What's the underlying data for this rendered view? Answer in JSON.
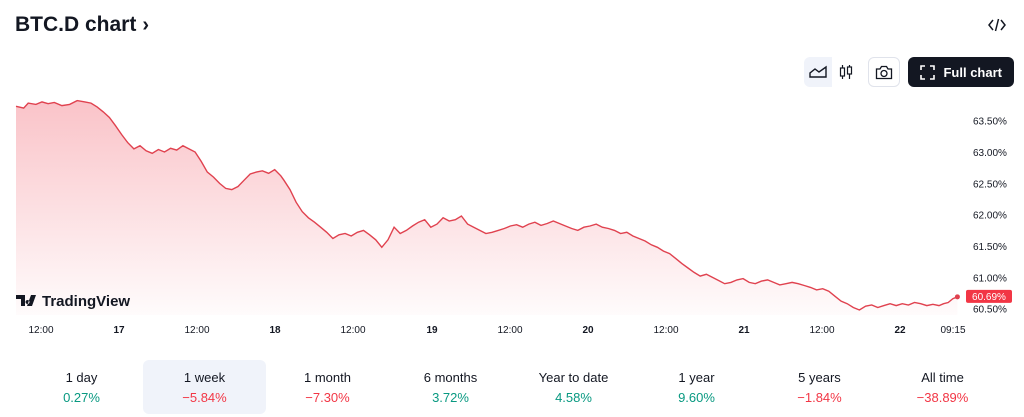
{
  "header": {
    "title": "BTC.D chart",
    "chevron": "›",
    "embed_icon": "</>"
  },
  "toolbar": {
    "area_icon": "area-chart-icon",
    "candle_icon": "candles-icon",
    "camera_icon": "camera-icon",
    "full_chart_label": "Full chart"
  },
  "watermark": {
    "text": "TradingView"
  },
  "chart_data": {
    "type": "area",
    "x_ticks": [
      "12:00",
      "17",
      "12:00",
      "18",
      "12:00",
      "19",
      "12:00",
      "20",
      "12:00",
      "21",
      "12:00",
      "22",
      "09:15"
    ],
    "y_ticks": [
      "63.50%",
      "63.00%",
      "62.50%",
      "62.00%",
      "61.50%",
      "61.00%",
      "60.50%"
    ],
    "y_tick_values": [
      63.5,
      63.0,
      62.5,
      62.0,
      61.5,
      61.0,
      60.5
    ],
    "ylim": [
      60.4,
      63.75
    ],
    "x_domain_days": [
      16.25,
      22.43
    ],
    "current_value_label": "60.69%",
    "current_value": 60.69,
    "line_color": "#e0424f",
    "fill_color": "#f7a3ab",
    "label_color": "#f23645",
    "points": [
      [
        16.25,
        63.73
      ],
      [
        16.3,
        63.7
      ],
      [
        16.33,
        63.78
      ],
      [
        16.38,
        63.76
      ],
      [
        16.42,
        63.8
      ],
      [
        16.46,
        63.77
      ],
      [
        16.5,
        63.79
      ],
      [
        16.55,
        63.74
      ],
      [
        16.6,
        63.76
      ],
      [
        16.65,
        63.82
      ],
      [
        16.7,
        63.8
      ],
      [
        16.74,
        63.78
      ],
      [
        16.78,
        63.72
      ],
      [
        16.82,
        63.64
      ],
      [
        16.86,
        63.55
      ],
      [
        16.9,
        63.42
      ],
      [
        16.94,
        63.28
      ],
      [
        16.98,
        63.15
      ],
      [
        17.02,
        63.05
      ],
      [
        17.06,
        63.1
      ],
      [
        17.1,
        63.02
      ],
      [
        17.14,
        62.98
      ],
      [
        17.18,
        63.04
      ],
      [
        17.22,
        63.0
      ],
      [
        17.26,
        63.06
      ],
      [
        17.3,
        63.03
      ],
      [
        17.34,
        63.1
      ],
      [
        17.38,
        63.05
      ],
      [
        17.42,
        63.0
      ],
      [
        17.46,
        62.85
      ],
      [
        17.5,
        62.68
      ],
      [
        17.54,
        62.6
      ],
      [
        17.58,
        62.5
      ],
      [
        17.62,
        62.42
      ],
      [
        17.66,
        62.4
      ],
      [
        17.7,
        62.45
      ],
      [
        17.74,
        62.55
      ],
      [
        17.78,
        62.65
      ],
      [
        17.82,
        62.68
      ],
      [
        17.86,
        62.7
      ],
      [
        17.9,
        62.66
      ],
      [
        17.94,
        62.72
      ],
      [
        17.98,
        62.62
      ],
      [
        18.0,
        62.55
      ],
      [
        18.04,
        62.4
      ],
      [
        18.08,
        62.2
      ],
      [
        18.12,
        62.05
      ],
      [
        18.16,
        61.95
      ],
      [
        18.2,
        61.88
      ],
      [
        18.24,
        61.8
      ],
      [
        18.28,
        61.72
      ],
      [
        18.32,
        61.62
      ],
      [
        18.36,
        61.68
      ],
      [
        18.4,
        61.7
      ],
      [
        18.44,
        61.66
      ],
      [
        18.48,
        61.72
      ],
      [
        18.52,
        61.75
      ],
      [
        18.56,
        61.68
      ],
      [
        18.6,
        61.6
      ],
      [
        18.64,
        61.48
      ],
      [
        18.68,
        61.6
      ],
      [
        18.72,
        61.8
      ],
      [
        18.76,
        61.7
      ],
      [
        18.8,
        61.75
      ],
      [
        18.84,
        61.82
      ],
      [
        18.88,
        61.88
      ],
      [
        18.92,
        61.92
      ],
      [
        18.96,
        61.8
      ],
      [
        19.0,
        61.85
      ],
      [
        19.04,
        61.95
      ],
      [
        19.08,
        61.9
      ],
      [
        19.12,
        61.92
      ],
      [
        19.16,
        61.98
      ],
      [
        19.2,
        61.85
      ],
      [
        19.24,
        61.8
      ],
      [
        19.28,
        61.75
      ],
      [
        19.32,
        61.7
      ],
      [
        19.36,
        61.72
      ],
      [
        19.4,
        61.75
      ],
      [
        19.44,
        61.78
      ],
      [
        19.48,
        61.82
      ],
      [
        19.52,
        61.84
      ],
      [
        19.56,
        61.8
      ],
      [
        19.6,
        61.85
      ],
      [
        19.64,
        61.88
      ],
      [
        19.68,
        61.83
      ],
      [
        19.72,
        61.86
      ],
      [
        19.76,
        61.9
      ],
      [
        19.8,
        61.86
      ],
      [
        19.84,
        61.82
      ],
      [
        19.88,
        61.78
      ],
      [
        19.92,
        61.75
      ],
      [
        19.96,
        61.8
      ],
      [
        20.0,
        61.82
      ],
      [
        20.04,
        61.85
      ],
      [
        20.08,
        61.8
      ],
      [
        20.12,
        61.78
      ],
      [
        20.16,
        61.75
      ],
      [
        20.2,
        61.7
      ],
      [
        20.24,
        61.72
      ],
      [
        20.28,
        61.66
      ],
      [
        20.32,
        61.62
      ],
      [
        20.36,
        61.58
      ],
      [
        20.4,
        61.52
      ],
      [
        20.44,
        61.48
      ],
      [
        20.48,
        61.42
      ],
      [
        20.52,
        61.38
      ],
      [
        20.56,
        61.3
      ],
      [
        20.6,
        61.22
      ],
      [
        20.64,
        61.15
      ],
      [
        20.68,
        61.08
      ],
      [
        20.72,
        61.02
      ],
      [
        20.76,
        61.05
      ],
      [
        20.8,
        61.0
      ],
      [
        20.84,
        60.95
      ],
      [
        20.88,
        60.9
      ],
      [
        20.92,
        60.92
      ],
      [
        20.96,
        60.96
      ],
      [
        21.0,
        60.98
      ],
      [
        21.04,
        60.92
      ],
      [
        21.08,
        60.9
      ],
      [
        21.12,
        60.94
      ],
      [
        21.16,
        60.96
      ],
      [
        21.2,
        60.92
      ],
      [
        21.24,
        60.88
      ],
      [
        21.28,
        60.9
      ],
      [
        21.32,
        60.92
      ],
      [
        21.36,
        60.9
      ],
      [
        21.4,
        60.87
      ],
      [
        21.44,
        60.84
      ],
      [
        21.48,
        60.8
      ],
      [
        21.52,
        60.82
      ],
      [
        21.56,
        60.78
      ],
      [
        21.6,
        60.7
      ],
      [
        21.64,
        60.62
      ],
      [
        21.68,
        60.58
      ],
      [
        21.72,
        60.52
      ],
      [
        21.76,
        60.48
      ],
      [
        21.8,
        60.54
      ],
      [
        21.84,
        60.56
      ],
      [
        21.88,
        60.52
      ],
      [
        21.92,
        60.55
      ],
      [
        21.96,
        60.58
      ],
      [
        22.0,
        60.55
      ],
      [
        22.04,
        60.58
      ],
      [
        22.08,
        60.56
      ],
      [
        22.12,
        60.6
      ],
      [
        22.16,
        60.58
      ],
      [
        22.2,
        60.55
      ],
      [
        22.24,
        60.57
      ],
      [
        22.28,
        60.55
      ],
      [
        22.31,
        60.58
      ],
      [
        22.34,
        60.6
      ],
      [
        22.37,
        60.66
      ],
      [
        22.4,
        60.69
      ]
    ]
  },
  "periods": [
    {
      "label": "1 day",
      "value": "0.27%",
      "trend": "pos"
    },
    {
      "label": "1 week",
      "value": "−5.84%",
      "trend": "neg",
      "selected": true
    },
    {
      "label": "1 month",
      "value": "−7.30%",
      "trend": "neg"
    },
    {
      "label": "6 months",
      "value": "3.72%",
      "trend": "pos"
    },
    {
      "label": "Year to date",
      "value": "4.58%",
      "trend": "pos"
    },
    {
      "label": "1 year",
      "value": "9.60%",
      "trend": "pos"
    },
    {
      "label": "5 years",
      "value": "−1.84%",
      "trend": "neg"
    },
    {
      "label": "All time",
      "value": "−38.89%",
      "trend": "neg"
    }
  ]
}
